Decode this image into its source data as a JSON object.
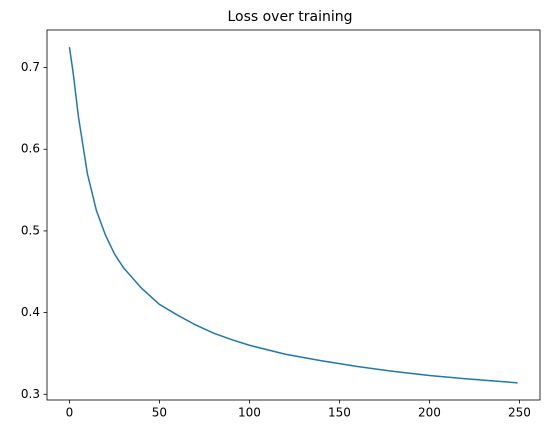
{
  "chart_data": {
    "type": "line",
    "title": "Loss over training",
    "x": [
      0,
      2,
      5,
      10,
      15,
      20,
      25,
      30,
      40,
      50,
      60,
      70,
      80,
      90,
      100,
      120,
      140,
      160,
      180,
      200,
      220,
      249
    ],
    "series": [
      {
        "color": "#1f77b4",
        "values": [
          0.725,
          0.695,
          0.64,
          0.57,
          0.525,
          0.495,
          0.472,
          0.455,
          0.43,
          0.41,
          0.397,
          0.385,
          0.375,
          0.367,
          0.36,
          0.349,
          0.341,
          0.334,
          0.328,
          0.323,
          0.319,
          0.314
        ]
      }
    ],
    "xlim": [
      -12.45,
      261.45
    ],
    "xticks": [
      0,
      50,
      100,
      150,
      200,
      250
    ],
    "ylim": [
      0.293,
      0.746
    ],
    "yticks": [
      0.3,
      0.4,
      0.5,
      0.6,
      0.7
    ]
  }
}
